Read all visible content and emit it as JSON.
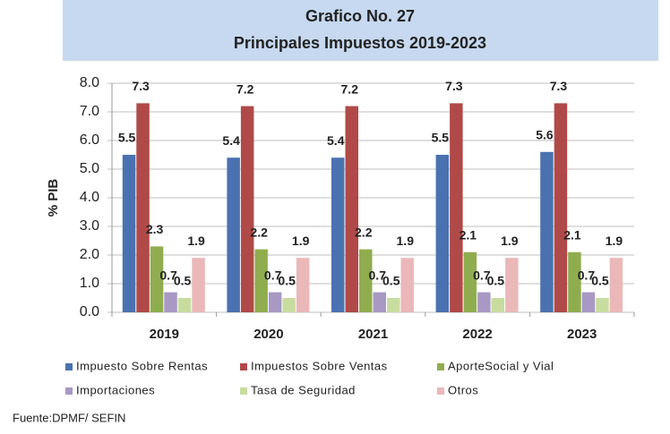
{
  "chart_data": {
    "type": "bar",
    "title": "Grafico No. 27",
    "subtitle": "Principales Impuestos 2019-2023",
    "y_label": "% PIB",
    "source": "Fuente:DPMF/ SEFIN",
    "categories": [
      "2019",
      "2020",
      "2021",
      "2022",
      "2023"
    ],
    "series": [
      {
        "name": "Impuesto Sobre Rentas",
        "color": "#4a72b0",
        "values": [
          5.5,
          5.4,
          5.4,
          5.5,
          5.6
        ]
      },
      {
        "name": "Impuestos Sobre Ventas",
        "color": "#b04a48",
        "values": [
          7.3,
          7.2,
          7.2,
          7.3,
          7.3
        ]
      },
      {
        "name": "AporteSocial y Vial",
        "color": "#8fad4e",
        "values": [
          2.3,
          2.2,
          2.2,
          2.1,
          2.1
        ]
      },
      {
        "name": "Importaciones",
        "color": "#a898c4",
        "values": [
          0.7,
          0.7,
          0.7,
          0.7,
          0.7
        ]
      },
      {
        "name": "Tasa de Seguridad",
        "color": "#c8dca0",
        "values": [
          0.5,
          0.5,
          0.5,
          0.5,
          0.5
        ]
      },
      {
        "name": "Otros",
        "color": "#eab8b8",
        "values": [
          1.9,
          1.9,
          1.9,
          1.9,
          1.9
        ]
      }
    ],
    "ylim": [
      0,
      8
    ],
    "yticks": [
      {
        "value": 0,
        "label": "0.0"
      },
      {
        "value": 1,
        "label": "1.0"
      },
      {
        "value": 2,
        "label": "2.0"
      },
      {
        "value": 3,
        "label": "3.0"
      },
      {
        "value": 4,
        "label": "4.0"
      },
      {
        "value": 5,
        "label": "5.0"
      },
      {
        "value": 6,
        "label": "6.0"
      },
      {
        "value": 7,
        "label": "7.0"
      },
      {
        "value": 8,
        "label": "8.0"
      }
    ],
    "grid": true,
    "legend": "bottom"
  }
}
